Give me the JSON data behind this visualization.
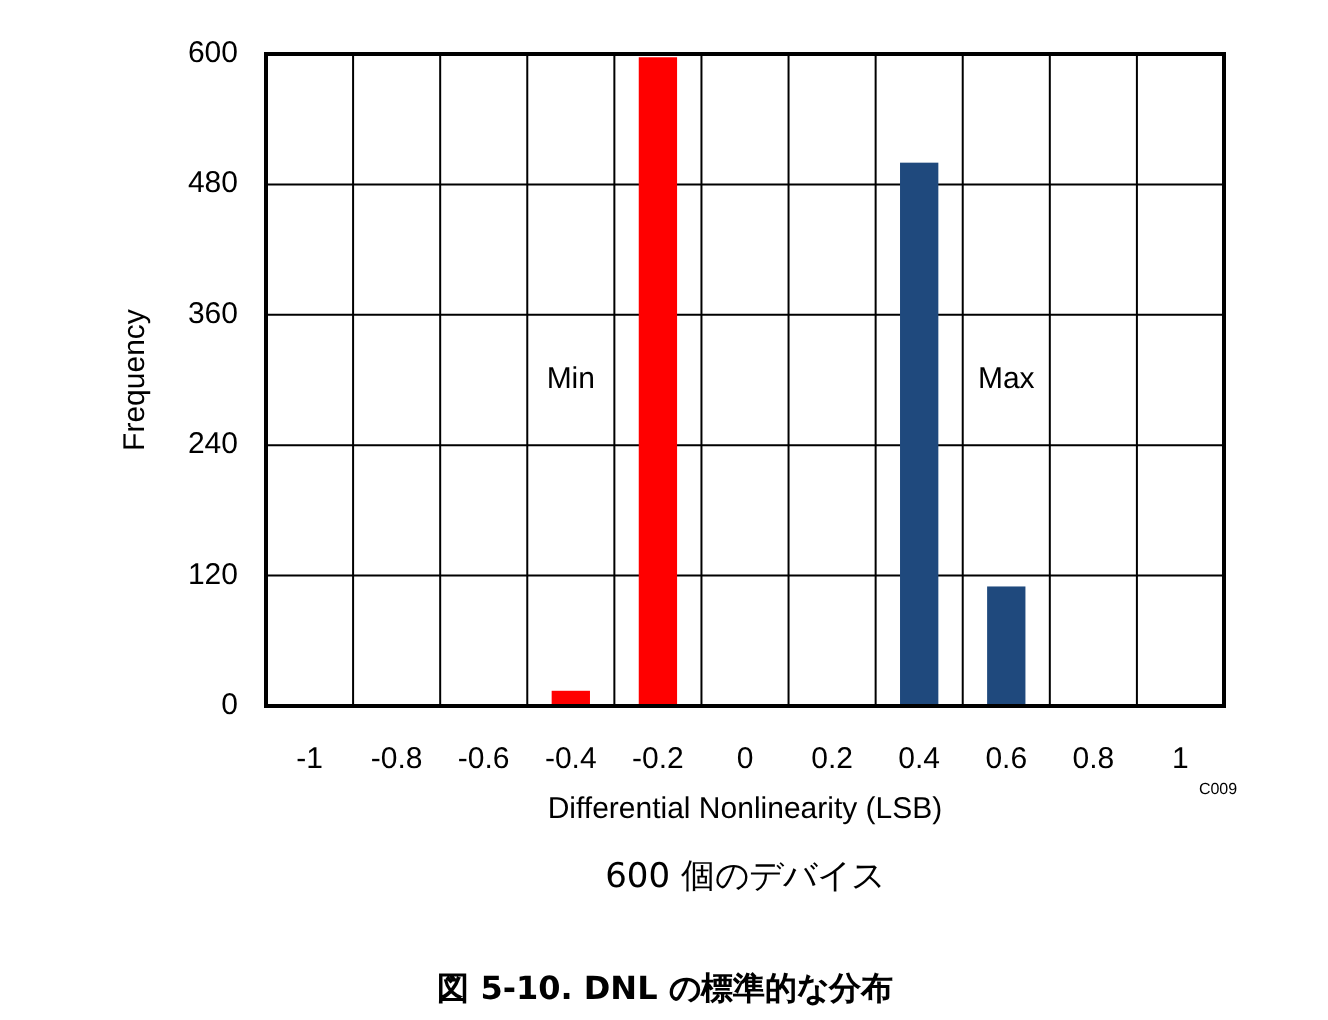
{
  "chart_data": {
    "type": "bar",
    "title": "図 5-10. DNL の標準的な分布",
    "subtitle": "600 個のデバイス",
    "xlabel": "Differential Nonlinearity (LSB)",
    "ylabel": "Frequency",
    "annotations": [
      "C009"
    ],
    "categories": [
      "-1",
      "-0.8",
      "-0.6",
      "-0.4",
      "-0.2",
      "0",
      "0.2",
      "0.4",
      "0.6",
      "0.8",
      "1"
    ],
    "series": [
      {
        "name": "Min",
        "color": "#ff0000",
        "values": [
          null,
          null,
          null,
          14,
          597,
          null,
          null,
          null,
          null,
          null,
          null
        ]
      },
      {
        "name": "Max",
        "color": "#1f497d",
        "values": [
          null,
          null,
          null,
          null,
          null,
          null,
          null,
          500,
          110,
          null,
          null
        ]
      }
    ],
    "ylim": [
      0,
      600
    ],
    "yticks": [
      0,
      120,
      240,
      360,
      480,
      600
    ],
    "grid": true
  }
}
